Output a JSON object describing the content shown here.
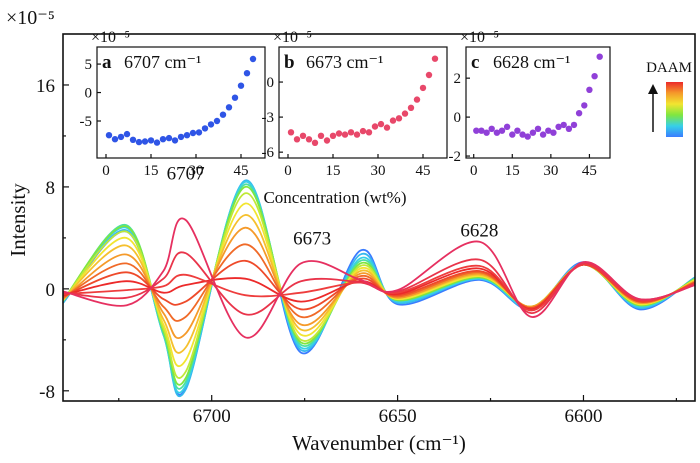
{
  "chart_data": {
    "type": "line",
    "title": "",
    "multiplier": "×10⁻⁵",
    "xlabel": "Wavenumber (cm⁻¹)",
    "ylabel": "Intensity",
    "xlim": [
      6740,
      6570
    ],
    "ylim": [
      -8.8,
      20
    ],
    "x_ticks": [
      6700,
      6650,
      6600
    ],
    "y_ticks": [
      -8,
      0,
      8,
      16
    ],
    "peak_labels": [
      {
        "text": "6707",
        "x": 6707,
        "y": 8.6
      },
      {
        "text": "6673",
        "x": 6673,
        "y": 3.5
      },
      {
        "text": "6628",
        "x": 6628,
        "y": 4.1
      }
    ],
    "colorbar": {
      "label": "DAAM",
      "colors": [
        "#3a7cff",
        "#36d0e8",
        "#7fe640",
        "#f2e530",
        "#f59a2a",
        "#ec2a2a"
      ]
    },
    "series": [
      {
        "color": "#3a7cff",
        "values": [
          -1.1,
          4.5,
          -3.5,
          -7.8,
          8.4,
          -5.0,
          3.0,
          -1.2,
          0.7,
          -1.6,
          2.1,
          -1.6,
          0.9
        ]
      },
      {
        "color": "#36b8ee",
        "values": [
          -1.1,
          4.6,
          -3.6,
          -7.9,
          8.5,
          -4.8,
          2.7,
          -1.1,
          0.8,
          -1.6,
          2.0,
          -1.5,
          0.9
        ]
      },
      {
        "color": "#36d0e8",
        "values": [
          -1.0,
          4.8,
          -3.6,
          -7.6,
          8.4,
          -4.6,
          2.4,
          -1.0,
          0.8,
          -1.5,
          2.0,
          -1.4,
          0.8
        ]
      },
      {
        "color": "#4ce0a0",
        "values": [
          -1.0,
          5.0,
          -3.5,
          -7.3,
          8.2,
          -4.4,
          2.2,
          -0.9,
          0.9,
          -1.4,
          1.9,
          -1.3,
          0.8
        ]
      },
      {
        "color": "#7fe640",
        "values": [
          -0.9,
          4.9,
          -3.3,
          -7.0,
          8.0,
          -4.2,
          2.0,
          -0.9,
          0.9,
          -1.4,
          1.9,
          -1.3,
          0.8
        ]
      },
      {
        "color": "#c0e838",
        "values": [
          -0.9,
          4.5,
          -3.1,
          -6.5,
          7.5,
          -4.0,
          1.8,
          -0.8,
          1.0,
          -1.4,
          1.9,
          -1.2,
          0.7
        ]
      },
      {
        "color": "#f2e530",
        "values": [
          -0.9,
          4.0,
          -2.8,
          -5.6,
          6.7,
          -3.6,
          1.6,
          -0.8,
          1.0,
          -1.4,
          1.9,
          -1.2,
          0.7
        ]
      },
      {
        "color": "#f5c02e",
        "values": [
          -0.8,
          3.4,
          -2.4,
          -4.6,
          5.8,
          -3.2,
          1.4,
          -0.7,
          1.1,
          -1.4,
          1.9,
          -1.1,
          0.6
        ]
      },
      {
        "color": "#f59a2a",
        "values": [
          -0.8,
          2.7,
          -1.9,
          -3.5,
          4.8,
          -2.8,
          1.2,
          -0.7,
          1.2,
          -1.4,
          1.9,
          -1.1,
          0.6
        ]
      },
      {
        "color": "#f06a28",
        "values": [
          -0.7,
          2.0,
          -1.4,
          -2.2,
          3.5,
          -2.2,
          1.0,
          -0.6,
          1.3,
          -1.5,
          1.9,
          -1.0,
          0.5
        ]
      },
      {
        "color": "#ee4a2a",
        "values": [
          -0.6,
          1.3,
          -0.8,
          -1.0,
          2.2,
          -1.6,
          0.8,
          -0.5,
          1.4,
          -1.5,
          1.9,
          -1.0,
          0.5
        ]
      },
      {
        "color": "#ec2a2a",
        "values": [
          -0.5,
          0.6,
          -0.3,
          0.3,
          0.8,
          -1.0,
          0.6,
          -0.4,
          1.6,
          -1.6,
          1.9,
          -0.9,
          0.4
        ]
      },
      {
        "color": "#ee3d3d",
        "values": [
          -0.4,
          -0.1,
          0.2,
          1.1,
          -0.5,
          -0.3,
          0.5,
          -0.3,
          1.8,
          -1.7,
          1.9,
          -0.9,
          0.4
        ]
      },
      {
        "color": "#e9344a",
        "values": [
          -0.3,
          -0.7,
          0.8,
          2.8,
          -2.0,
          0.6,
          0.5,
          -0.2,
          2.3,
          -1.9,
          2.0,
          -0.8,
          0.3
        ]
      },
      {
        "color": "#e63060",
        "values": [
          -0.2,
          -1.3,
          1.4,
          5.4,
          -3.8,
          2.0,
          0.7,
          -0.1,
          3.7,
          -2.2,
          2.1,
          -0.8,
          0.3
        ]
      }
    ],
    "x_knots": [
      6740,
      6723,
      6713,
      6707,
      6691,
      6676,
      6660,
      6650,
      6628,
      6614,
      6600,
      6585,
      6570
    ],
    "insets": [
      {
        "panel": "a",
        "label": "6707 cm⁻¹",
        "multiplier": "×10⁻⁵",
        "color": "#2f55e6",
        "y_ticks": [
          -5,
          0,
          5
        ],
        "ylim": [
          -11.5,
          8
        ],
        "x_ticks": [
          0,
          15,
          30,
          45
        ],
        "xlim": [
          -3,
          53
        ],
        "points": [
          [
            1,
            -7.5
          ],
          [
            3,
            -8.2
          ],
          [
            5,
            -7.8
          ],
          [
            7,
            -7.3
          ],
          [
            9,
            -8.3
          ],
          [
            11,
            -8.7
          ],
          [
            13,
            -8.6
          ],
          [
            15,
            -8.4
          ],
          [
            17,
            -8.8
          ],
          [
            19,
            -8.2
          ],
          [
            21,
            -8.0
          ],
          [
            23,
            -8.4
          ],
          [
            25,
            -7.8
          ],
          [
            27,
            -7.5
          ],
          [
            29,
            -7.1
          ],
          [
            31,
            -7.0
          ],
          [
            33,
            -6.3
          ],
          [
            35,
            -5.6
          ],
          [
            37,
            -5.0
          ],
          [
            39,
            -3.9
          ],
          [
            41,
            -2.6
          ],
          [
            43,
            -0.9
          ],
          [
            45,
            1.2
          ],
          [
            47,
            3.4
          ],
          [
            49,
            5.9
          ]
        ]
      },
      {
        "panel": "b",
        "label": "6673 cm⁻¹",
        "multiplier": "×10⁻⁵",
        "color": "#e8486a",
        "y_ticks": [
          -6,
          -3,
          0
        ],
        "ylim": [
          -6.5,
          3
        ],
        "x_ticks": [
          0,
          15,
          30,
          45
        ],
        "xlim": [
          -3,
          53
        ],
        "points": [
          [
            1,
            -4.3
          ],
          [
            3,
            -4.9
          ],
          [
            5,
            -4.6
          ],
          [
            7,
            -4.9
          ],
          [
            9,
            -5.2
          ],
          [
            11,
            -4.6
          ],
          [
            13,
            -5.0
          ],
          [
            15,
            -4.6
          ],
          [
            17,
            -4.4
          ],
          [
            19,
            -4.5
          ],
          [
            21,
            -4.3
          ],
          [
            23,
            -4.5
          ],
          [
            25,
            -4.2
          ],
          [
            27,
            -4.3
          ],
          [
            29,
            -3.8
          ],
          [
            31,
            -3.6
          ],
          [
            33,
            -3.9
          ],
          [
            35,
            -3.3
          ],
          [
            37,
            -3.1
          ],
          [
            39,
            -2.7
          ],
          [
            41,
            -2.2
          ],
          [
            43,
            -1.5
          ],
          [
            45,
            -0.5
          ],
          [
            47,
            0.6
          ],
          [
            49,
            2.0
          ]
        ]
      },
      {
        "panel": "c",
        "label": "6628 cm⁻¹",
        "multiplier": "×10⁻⁵",
        "color": "#9040d8",
        "y_ticks": [
          -2,
          0,
          2
        ],
        "ylim": [
          -2.1,
          3.6
        ],
        "x_ticks": [
          0,
          15,
          30,
          45
        ],
        "xlim": [
          -3,
          53
        ],
        "points": [
          [
            1,
            -0.7
          ],
          [
            3,
            -0.7
          ],
          [
            5,
            -0.8
          ],
          [
            7,
            -0.6
          ],
          [
            9,
            -0.8
          ],
          [
            11,
            -0.7
          ],
          [
            13,
            -0.5
          ],
          [
            15,
            -0.9
          ],
          [
            17,
            -0.7
          ],
          [
            19,
            -0.9
          ],
          [
            21,
            -1.0
          ],
          [
            23,
            -0.8
          ],
          [
            25,
            -0.6
          ],
          [
            27,
            -0.9
          ],
          [
            29,
            -0.7
          ],
          [
            31,
            -0.8
          ],
          [
            33,
            -0.5
          ],
          [
            35,
            -0.4
          ],
          [
            37,
            -0.6
          ],
          [
            39,
            -0.4
          ],
          [
            41,
            0.2
          ],
          [
            43,
            0.6
          ],
          [
            45,
            1.4
          ],
          [
            47,
            2.1
          ],
          [
            49,
            3.1
          ]
        ]
      }
    ],
    "inset_xlabel": "Concentration (wt%)"
  }
}
